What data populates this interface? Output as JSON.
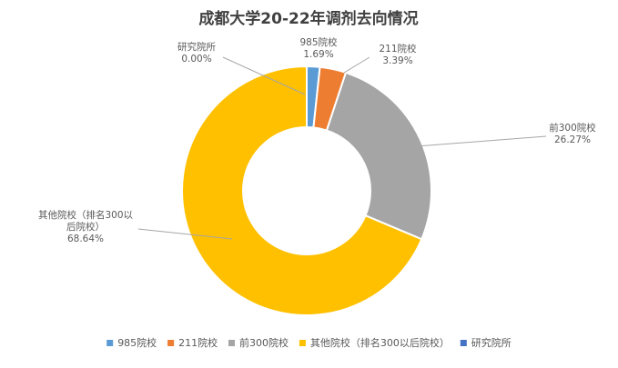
{
  "chart_data": {
    "type": "pie",
    "title": "成都大学20-22年调剂去向情况",
    "series": [
      {
        "name": "985院校",
        "value": 1.69,
        "label": "1.69%",
        "color": "#5B9BD5"
      },
      {
        "name": "211院校",
        "value": 3.39,
        "label": "3.39%",
        "color": "#ED7D31"
      },
      {
        "name": "前300院校",
        "value": 26.27,
        "label": "26.27%",
        "color": "#A5A5A5"
      },
      {
        "name": "其他院校（排名300以后院校）",
        "value": 68.64,
        "label": "68.64%",
        "color": "#FFC000"
      },
      {
        "name": "研究院所",
        "value": 0.0,
        "label": "0.00%",
        "color": "#4472C4"
      }
    ],
    "slice_labels": {
      "985院校": [
        "985院校"
      ],
      "211院校": [
        "211院校"
      ],
      "前300院校": [
        "前300院校"
      ],
      "其他院校（排名300以后院校）": [
        "其他院校（排名300以",
        "后院校）"
      ],
      "研究院所": [
        "研究院所"
      ]
    },
    "legend_position": "bottom",
    "donut": true
  }
}
